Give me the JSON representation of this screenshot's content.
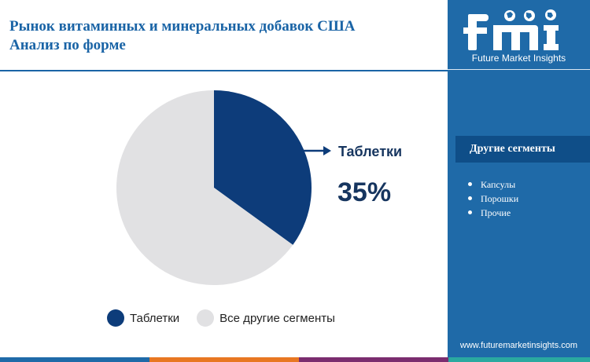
{
  "title_line1": "Рынок витаминных и минеральных добавок США",
  "title_line2": "Анализ по форме",
  "chart_data": {
    "type": "pie",
    "title": "Рынок витаминных и минеральных добавок США Анализ по форме",
    "categories": [
      "Таблетки",
      "Все другие сегменты"
    ],
    "values": [
      35,
      65
    ],
    "colors": [
      "#0d3c7a",
      "#e1e1e3"
    ],
    "legend_position": "bottom",
    "grid": false
  },
  "callout": {
    "label": "Таблетки",
    "value": "35%"
  },
  "legend": [
    {
      "label": "Таблетки",
      "color": "#0d3c7a"
    },
    {
      "label": "Все другие сегменты",
      "color": "#e1e1e3"
    }
  ],
  "side": {
    "logo_text": "fmi",
    "logo_subtitle": "Future Market Insights",
    "segments_heading": "Другие сегменты",
    "segments": [
      "Капсулы",
      "Порошки",
      "Прочие"
    ],
    "website": "www.futuremarketinsights.com"
  },
  "colors": {
    "accent": "#1a64a6",
    "panel": "#1f6aa8",
    "panel_heading": "#0f4e88",
    "bottom_bar": [
      "#1f6aa8",
      "#e87722",
      "#7b2d6f",
      "#2aa9a0"
    ]
  }
}
